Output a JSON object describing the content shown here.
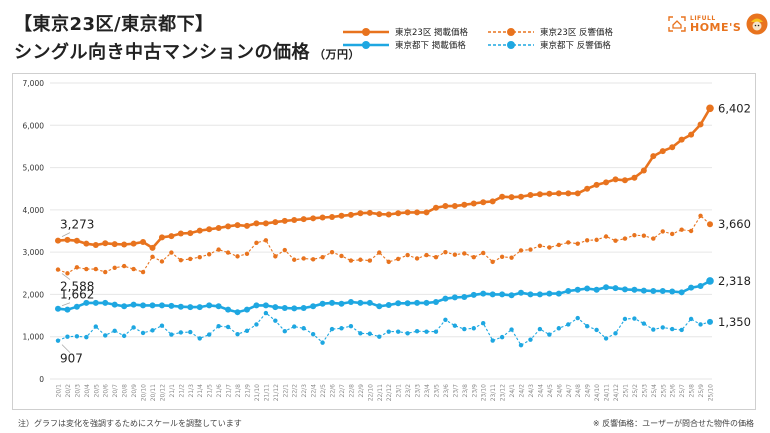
{
  "header": {
    "title_line1": "【東京23区/東京都下】",
    "title_line2": "シングル向き中古マンションの価格",
    "unit": "（万円）"
  },
  "legend": {
    "items": [
      {
        "label": "東京23区 掲載価格",
        "color": "#e8731e",
        "style": "solid"
      },
      {
        "label": "東京都下 掲載価格",
        "color": "#1ea7e1",
        "style": "solid"
      },
      {
        "label": "東京23区 反響価格",
        "color": "#e8731e",
        "style": "dashed"
      },
      {
        "label": "東京都下 反響価格",
        "color": "#1ea7e1",
        "style": "dashed"
      }
    ]
  },
  "logo": {
    "line1": "LIFULL",
    "line2": "HOME'S",
    "color": "#e8731e"
  },
  "footer": {
    "note_left": "注）グラフは変化を強調するためにスケールを調整しています",
    "note_right": "※ 反響価格：ユーザーが問合せた物件の価格"
  },
  "chart_data": {
    "type": "line",
    "title": "【東京23区/東京都下】シングル向き中古マンションの価格（万円）",
    "xlabel": "",
    "ylabel": "",
    "ylim": [
      0,
      7000
    ],
    "yticks": [
      0,
      1000,
      2000,
      3000,
      4000,
      5000,
      6000,
      7000
    ],
    "ytick_labels": [
      "0",
      "1,000",
      "2,000",
      "3,000",
      "4,000",
      "5,000",
      "6,000",
      "7,000"
    ],
    "grid": true,
    "legend_position": "top-right",
    "x": [
      "20/1",
      "20/2",
      "20/3",
      "20/4",
      "20/5",
      "20/6",
      "20/7",
      "20/8",
      "20/9",
      "20/10",
      "20/11",
      "20/12",
      "21/1",
      "21/2",
      "21/3",
      "21/4",
      "21/5",
      "21/6",
      "21/7",
      "21/8",
      "21/9",
      "21/10",
      "21/11",
      "21/12",
      "22/1",
      "22/2",
      "22/3",
      "22/4",
      "22/5",
      "22/6",
      "22/7",
      "22/8",
      "22/9",
      "22/10",
      "22/11",
      "22/12",
      "23/1",
      "23/2",
      "23/3",
      "23/4",
      "23/5",
      "23/6",
      "23/7",
      "23/8",
      "23/9",
      "23/10",
      "23/11",
      "23/12",
      "24/1",
      "24/2",
      "24/3",
      "24/4",
      "24/5",
      "24/6",
      "24/7",
      "24/8",
      "24/9",
      "24/10",
      "24/11",
      "24/12",
      "25/1",
      "25/2",
      "25/3",
      "25/4",
      "25/5",
      "25/6",
      "25/7",
      "25/8",
      "25/9",
      "25/10"
    ],
    "series": [
      {
        "name": "東京23区 掲載価格",
        "color": "#e8731e",
        "style": "solid",
        "start_label": "3,273",
        "end_label": "6,402",
        "values": [
          3273,
          3290,
          3270,
          3200,
          3170,
          3210,
          3190,
          3180,
          3200,
          3240,
          3100,
          3350,
          3380,
          3440,
          3450,
          3510,
          3540,
          3570,
          3610,
          3640,
          3620,
          3680,
          3680,
          3710,
          3740,
          3760,
          3780,
          3800,
          3820,
          3830,
          3860,
          3880,
          3920,
          3930,
          3900,
          3890,
          3920,
          3940,
          3940,
          3940,
          4050,
          4090,
          4090,
          4120,
          4150,
          4180,
          4200,
          4310,
          4300,
          4310,
          4350,
          4370,
          4380,
          4390,
          4390,
          4390,
          4500,
          4590,
          4650,
          4720,
          4700,
          4760,
          4930,
          5270,
          5390,
          5480,
          5660,
          5780,
          6020,
          6402
        ]
      },
      {
        "name": "東京23区 反響価格",
        "color": "#e8731e",
        "style": "dashed",
        "start_label": "2,588",
        "end_label": "3,660",
        "values": [
          2588,
          2500,
          2640,
          2600,
          2600,
          2530,
          2630,
          2670,
          2600,
          2530,
          2890,
          2780,
          2990,
          2810,
          2840,
          2880,
          2950,
          3060,
          2990,
          2900,
          2960,
          3220,
          3280,
          2900,
          3050,
          2820,
          2850,
          2830,
          2880,
          3000,
          2910,
          2800,
          2820,
          2800,
          2990,
          2770,
          2840,
          2930,
          2850,
          2930,
          2880,
          3000,
          2940,
          2970,
          2880,
          2980,
          2770,
          2890,
          2870,
          3040,
          3060,
          3150,
          3110,
          3170,
          3230,
          3200,
          3280,
          3290,
          3370,
          3270,
          3320,
          3400,
          3390,
          3320,
          3490,
          3430,
          3530,
          3500,
          3860,
          3660
        ]
      },
      {
        "name": "東京都下 掲載価格",
        "color": "#1ea7e1",
        "style": "solid",
        "start_label": "1,662",
        "end_label": "2,318",
        "values": [
          1662,
          1640,
          1710,
          1800,
          1800,
          1800,
          1760,
          1720,
          1760,
          1740,
          1740,
          1740,
          1730,
          1710,
          1700,
          1700,
          1740,
          1720,
          1640,
          1580,
          1640,
          1740,
          1740,
          1700,
          1680,
          1670,
          1680,
          1720,
          1780,
          1800,
          1780,
          1820,
          1800,
          1800,
          1720,
          1750,
          1790,
          1790,
          1800,
          1800,
          1820,
          1900,
          1930,
          1940,
          1990,
          2020,
          2000,
          2000,
          1980,
          2040,
          2000,
          2000,
          2020,
          2020,
          2080,
          2110,
          2140,
          2110,
          2170,
          2150,
          2120,
          2110,
          2090,
          2080,
          2080,
          2070,
          2050,
          2160,
          2200,
          2318
        ]
      },
      {
        "name": "東京都下 反響価格",
        "color": "#1ea7e1",
        "style": "dashed",
        "start_label": "907",
        "end_label": "1,350",
        "values": [
          907,
          1000,
          1010,
          990,
          1240,
          1030,
          1140,
          1020,
          1220,
          1090,
          1150,
          1260,
          1050,
          1100,
          1110,
          960,
          1050,
          1250,
          1230,
          1060,
          1140,
          1290,
          1560,
          1380,
          1130,
          1240,
          1200,
          1060,
          860,
          1180,
          1200,
          1250,
          1080,
          1070,
          1000,
          1120,
          1120,
          1080,
          1130,
          1120,
          1120,
          1400,
          1260,
          1180,
          1200,
          1320,
          910,
          990,
          1170,
          800,
          930,
          1180,
          1050,
          1200,
          1290,
          1440,
          1250,
          1160,
          960,
          1080,
          1420,
          1430,
          1310,
          1170,
          1220,
          1180,
          1160,
          1420,
          1290,
          1350
        ]
      }
    ]
  }
}
